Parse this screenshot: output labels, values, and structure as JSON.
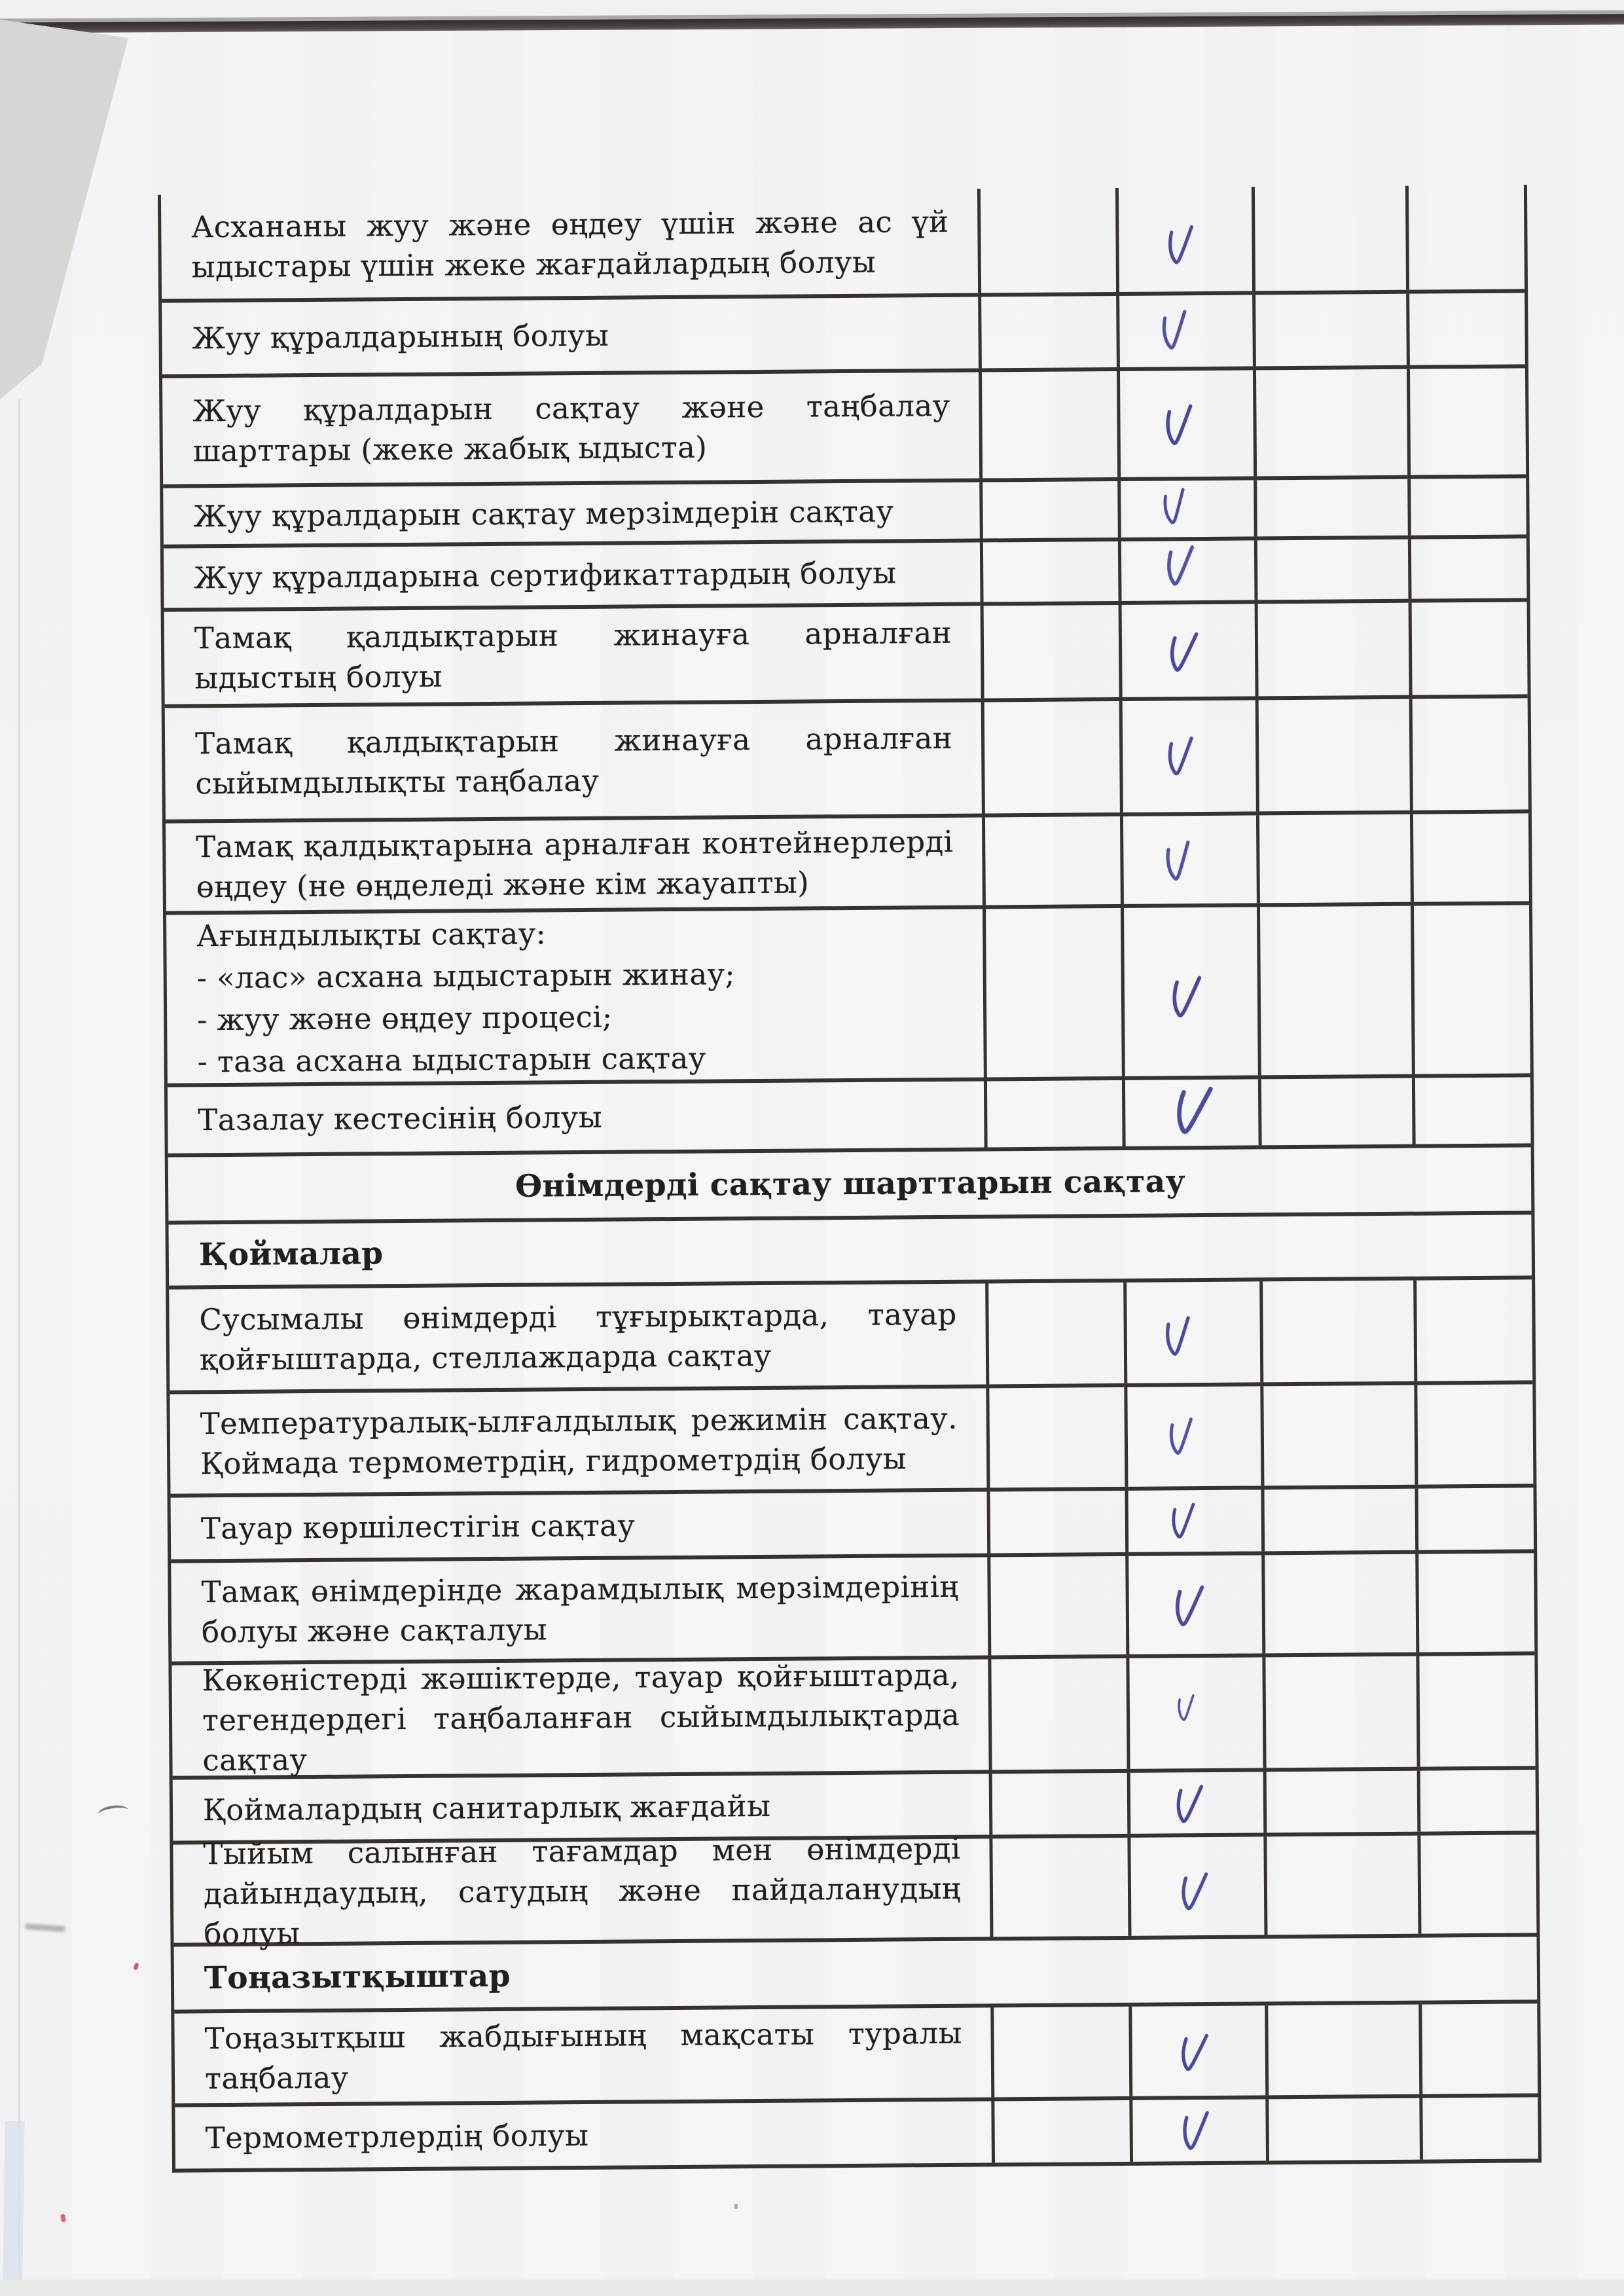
{
  "document": {
    "kind": "scanned checklist page",
    "language": "Kazakh",
    "check_symbol": "V"
  },
  "colors": {
    "checkmark_ink": "#3e3f9b",
    "table_line": "#37322f",
    "text_ink": "#221e1c",
    "paper": "#f5f5f6"
  },
  "table": {
    "columns": [
      "criterion",
      "col-1",
      "col-2",
      "col-3",
      "col-4"
    ],
    "rows": [
      {
        "kind": "item",
        "text": "Асхананы жуу және өңдеу үшін және ас үй ыдыстары үшін жеке жағдайлардың болуы",
        "checked": true
      },
      {
        "kind": "item",
        "text": "Жуу құралдарының болуы",
        "checked": true
      },
      {
        "kind": "item",
        "text": "Жуу құралдарын сақтау және таңбалау шарттары (жеке жабық ыдыста)",
        "checked": true
      },
      {
        "kind": "item",
        "text": "Жуу құралдарын сақтау мерзімдерін сақтау",
        "checked": true
      },
      {
        "kind": "item",
        "text": "Жуу құралдарына сертификаттардың болуы",
        "checked": true
      },
      {
        "kind": "item",
        "text": "Тамақ қалдықтарын жинауға арналған ыдыстың болуы",
        "checked": true
      },
      {
        "kind": "item",
        "text": "Тамақ қалдықтарын жинауға арналған сыйымдылықты таңбалау",
        "checked": true
      },
      {
        "kind": "item",
        "text": "Тамақ қалдықтарына арналған контейнерлерді өңдеу (не өңделеді және кім жауапты)",
        "checked": true
      },
      {
        "kind": "item",
        "lines": [
          "Ағындылықты сақтау:",
          "- «лас» асхана ыдыстарын жинау;",
          "- жуу және өңдеу процесі;",
          "- таза асхана ыдыстарын сақтау"
        ],
        "checked": true
      },
      {
        "kind": "item",
        "text": "Тазалау кестесінің болуы",
        "checked": true
      },
      {
        "kind": "section",
        "text": "Өнімдерді сақтау шарттарын сақтау"
      },
      {
        "kind": "subsection",
        "text": "Қоймалар"
      },
      {
        "kind": "item",
        "text": "Сусымалы өнімдерді тұғырықтарда, тауар қойғыштарда, стеллаждарда сақтау",
        "checked": true
      },
      {
        "kind": "item",
        "text": "Температуралық-ылғалдылық режимін сақтау. Қоймада термометрдің, гидрометрдің болуы",
        "checked": true
      },
      {
        "kind": "item",
        "text": "Тауар көршілестігін сақтау",
        "checked": true
      },
      {
        "kind": "item",
        "text": "Тамақ өнімдерінде жарамдылық мерзімдерінің болуы және сақталуы",
        "checked": true
      },
      {
        "kind": "item",
        "text": "Көкөністерді жәшіктерде, тауар қойғыштарда, тегендердегі таңбаланған сыйымдылықтарда сақтау",
        "checked": true
      },
      {
        "kind": "item",
        "text": "Қоймалардың санитарлық жағдайы",
        "checked": true
      },
      {
        "kind": "item",
        "text": "Тыйым салынған тағамдар мен өнімдерді дайындаудың, сатудың және пайдаланудың болуы",
        "checked": true
      },
      {
        "kind": "subsection",
        "text": "Тоңазытқыштар"
      },
      {
        "kind": "item",
        "text": "Тоңазытқыш жабдығының мақсаты туралы таңбалау",
        "checked": true
      },
      {
        "kind": "item",
        "text": "Термометрлердің болуы",
        "checked": true
      }
    ]
  }
}
